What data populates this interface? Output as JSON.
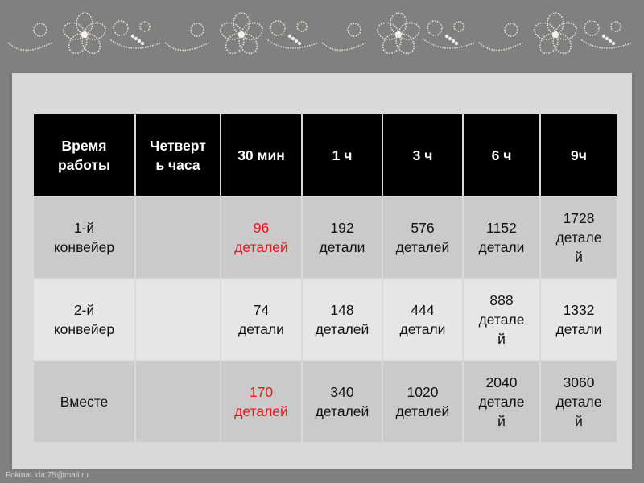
{
  "table": {
    "headers": [
      "Время\nработы",
      "Четверт\nь часа",
      "30 мин",
      "1 ч",
      "3 ч",
      "6 ч",
      "9ч"
    ],
    "rows": [
      {
        "cells": [
          "1-й\nконвейер",
          "",
          "96\nдеталей",
          "192\nдетали",
          "576\nдеталей",
          "1152\nдетали",
          "1728\nдетале\nй"
        ],
        "highlighted": [
          2
        ]
      },
      {
        "cells": [
          "2-й\nконвейер",
          "",
          "74\nдетали",
          "148\nдеталей",
          "444\nдетали",
          "888\nдетале\nй",
          "1332\nдетали"
        ],
        "highlighted": []
      },
      {
        "cells": [
          "Вместе",
          "",
          "170\nдеталей",
          "340\nдеталей",
          "1020\nдеталей",
          "2040\nдетале\nй",
          "3060\nдетале\nй"
        ],
        "highlighted": [
          2
        ]
      }
    ]
  },
  "footer": "FokinaLida.75@mail.ru",
  "colors": {
    "background": "#808080",
    "panel": "#d9d9d9",
    "header": "#000000",
    "highlight": "#e8141b"
  },
  "decoration": "pearl-floral-ornament"
}
